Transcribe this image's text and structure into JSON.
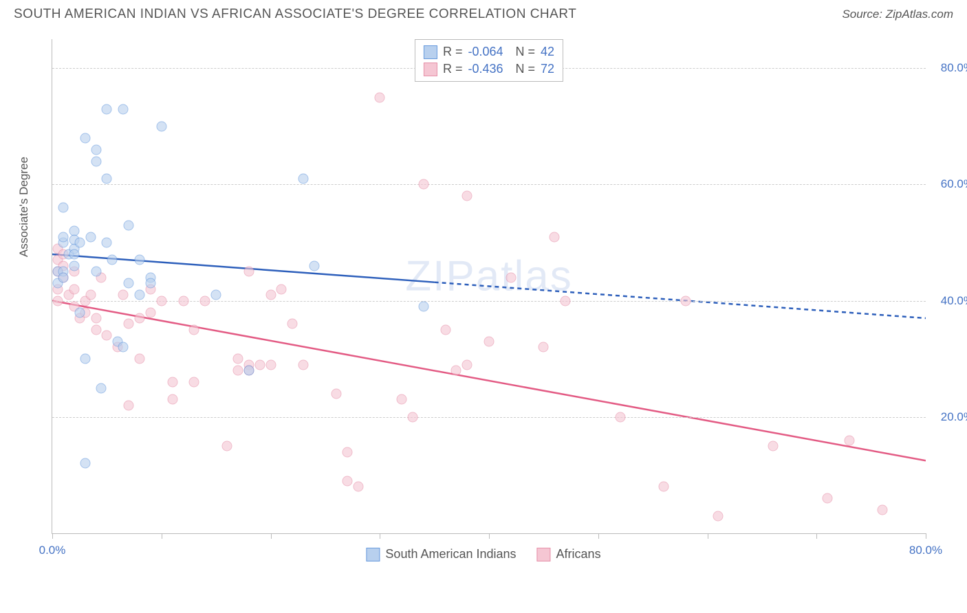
{
  "title": "SOUTH AMERICAN INDIAN VS AFRICAN ASSOCIATE'S DEGREE CORRELATION CHART",
  "source_label": "Source: ZipAtlas.com",
  "watermark": "ZIPatlas",
  "chart": {
    "type": "scatter",
    "xlim": [
      0,
      80
    ],
    "ylim": [
      0,
      85
    ],
    "ylabel": "Associate's Degree",
    "yticks": [
      20,
      40,
      60,
      80
    ],
    "ytick_labels": [
      "20.0%",
      "40.0%",
      "60.0%",
      "80.0%"
    ],
    "xticks": [
      0,
      10,
      20,
      30,
      40,
      50,
      60,
      70,
      80
    ],
    "xtick_labels": {
      "0": "0.0%",
      "80": "80.0%"
    },
    "grid_color": "#cccccc",
    "axis_color": "#bbbbbb",
    "background_color": "#ffffff",
    "point_radius": 7.5,
    "series": {
      "blue": {
        "label": "South American Indians",
        "fill": "#b8d0ee",
        "stroke": "#6699dd",
        "fill_opacity": 0.6,
        "R": "-0.064",
        "N": "42",
        "trend": {
          "y_at_x0": 48,
          "y_at_x80": 37,
          "color": "#2d5fbb",
          "width": 2.5,
          "solid_until_x": 35
        },
        "points": [
          {
            "x": 0.5,
            "y": 45
          },
          {
            "x": 0.5,
            "y": 43
          },
          {
            "x": 1,
            "y": 45
          },
          {
            "x": 1,
            "y": 56
          },
          {
            "x": 1,
            "y": 50
          },
          {
            "x": 1,
            "y": 51
          },
          {
            "x": 1,
            "y": 44
          },
          {
            "x": 1.5,
            "y": 48
          },
          {
            "x": 2,
            "y": 52
          },
          {
            "x": 2,
            "y": 49
          },
          {
            "x": 2,
            "y": 50.5
          },
          {
            "x": 2,
            "y": 48
          },
          {
            "x": 2,
            "y": 46
          },
          {
            "x": 2.5,
            "y": 38
          },
          {
            "x": 2.5,
            "y": 50
          },
          {
            "x": 3,
            "y": 68
          },
          {
            "x": 3,
            "y": 30
          },
          {
            "x": 3,
            "y": 12
          },
          {
            "x": 3.5,
            "y": 51
          },
          {
            "x": 4,
            "y": 64
          },
          {
            "x": 4,
            "y": 66
          },
          {
            "x": 4,
            "y": 45
          },
          {
            "x": 4.5,
            "y": 25
          },
          {
            "x": 5,
            "y": 73
          },
          {
            "x": 5,
            "y": 61
          },
          {
            "x": 5,
            "y": 50
          },
          {
            "x": 5.5,
            "y": 47
          },
          {
            "x": 6,
            "y": 33
          },
          {
            "x": 6.5,
            "y": 73
          },
          {
            "x": 6.5,
            "y": 32
          },
          {
            "x": 7,
            "y": 53
          },
          {
            "x": 7,
            "y": 43
          },
          {
            "x": 8,
            "y": 47
          },
          {
            "x": 8,
            "y": 41
          },
          {
            "x": 9,
            "y": 44
          },
          {
            "x": 9,
            "y": 43
          },
          {
            "x": 10,
            "y": 70
          },
          {
            "x": 15,
            "y": 41
          },
          {
            "x": 18,
            "y": 28
          },
          {
            "x": 23,
            "y": 61
          },
          {
            "x": 24,
            "y": 46
          },
          {
            "x": 34,
            "y": 39
          }
        ]
      },
      "pink": {
        "label": "Africans",
        "fill": "#f5c6d3",
        "stroke": "#e68fa8",
        "fill_opacity": 0.6,
        "R": "-0.436",
        "N": "72",
        "trend": {
          "y_at_x0": 40,
          "y_at_x80": 12.5,
          "color": "#e35b84",
          "width": 2.5,
          "solid_until_x": 80
        },
        "points": [
          {
            "x": 0.5,
            "y": 49
          },
          {
            "x": 0.5,
            "y": 47
          },
          {
            "x": 0.5,
            "y": 45
          },
          {
            "x": 0.5,
            "y": 42
          },
          {
            "x": 0.5,
            "y": 40
          },
          {
            "x": 1,
            "y": 46
          },
          {
            "x": 1,
            "y": 44
          },
          {
            "x": 1,
            "y": 48
          },
          {
            "x": 1.5,
            "y": 41
          },
          {
            "x": 2,
            "y": 45
          },
          {
            "x": 2,
            "y": 42
          },
          {
            "x": 2,
            "y": 39
          },
          {
            "x": 2.5,
            "y": 37
          },
          {
            "x": 3,
            "y": 40
          },
          {
            "x": 3,
            "y": 38
          },
          {
            "x": 3.5,
            "y": 41
          },
          {
            "x": 4,
            "y": 37
          },
          {
            "x": 4,
            "y": 35
          },
          {
            "x": 4.5,
            "y": 44
          },
          {
            "x": 5,
            "y": 34
          },
          {
            "x": 6,
            "y": 32
          },
          {
            "x": 6.5,
            "y": 41
          },
          {
            "x": 7,
            "y": 36
          },
          {
            "x": 7,
            "y": 22
          },
          {
            "x": 8,
            "y": 37
          },
          {
            "x": 8,
            "y": 30
          },
          {
            "x": 9,
            "y": 42
          },
          {
            "x": 9,
            "y": 38
          },
          {
            "x": 10,
            "y": 40
          },
          {
            "x": 11,
            "y": 23
          },
          {
            "x": 11,
            "y": 26
          },
          {
            "x": 12,
            "y": 40
          },
          {
            "x": 13,
            "y": 35
          },
          {
            "x": 13,
            "y": 26
          },
          {
            "x": 14,
            "y": 40
          },
          {
            "x": 16,
            "y": 15
          },
          {
            "x": 17,
            "y": 30
          },
          {
            "x": 17,
            "y": 28
          },
          {
            "x": 18,
            "y": 45
          },
          {
            "x": 18,
            "y": 29
          },
          {
            "x": 18,
            "y": 28
          },
          {
            "x": 19,
            "y": 29
          },
          {
            "x": 20,
            "y": 41
          },
          {
            "x": 20,
            "y": 29
          },
          {
            "x": 21,
            "y": 42
          },
          {
            "x": 22,
            "y": 36
          },
          {
            "x": 23,
            "y": 29
          },
          {
            "x": 26,
            "y": 24
          },
          {
            "x": 27,
            "y": 14
          },
          {
            "x": 27,
            "y": 9
          },
          {
            "x": 28,
            "y": 8
          },
          {
            "x": 30,
            "y": 75
          },
          {
            "x": 32,
            "y": 23
          },
          {
            "x": 33,
            "y": 20
          },
          {
            "x": 34,
            "y": 60
          },
          {
            "x": 36,
            "y": 35
          },
          {
            "x": 37,
            "y": 28
          },
          {
            "x": 38,
            "y": 29
          },
          {
            "x": 38,
            "y": 58
          },
          {
            "x": 40,
            "y": 33
          },
          {
            "x": 42,
            "y": 44
          },
          {
            "x": 45,
            "y": 32
          },
          {
            "x": 46,
            "y": 51
          },
          {
            "x": 47,
            "y": 40
          },
          {
            "x": 52,
            "y": 20
          },
          {
            "x": 56,
            "y": 8
          },
          {
            "x": 58,
            "y": 40
          },
          {
            "x": 61,
            "y": 3
          },
          {
            "x": 66,
            "y": 15
          },
          {
            "x": 71,
            "y": 6
          },
          {
            "x": 73,
            "y": 16
          },
          {
            "x": 76,
            "y": 4
          }
        ]
      }
    }
  }
}
